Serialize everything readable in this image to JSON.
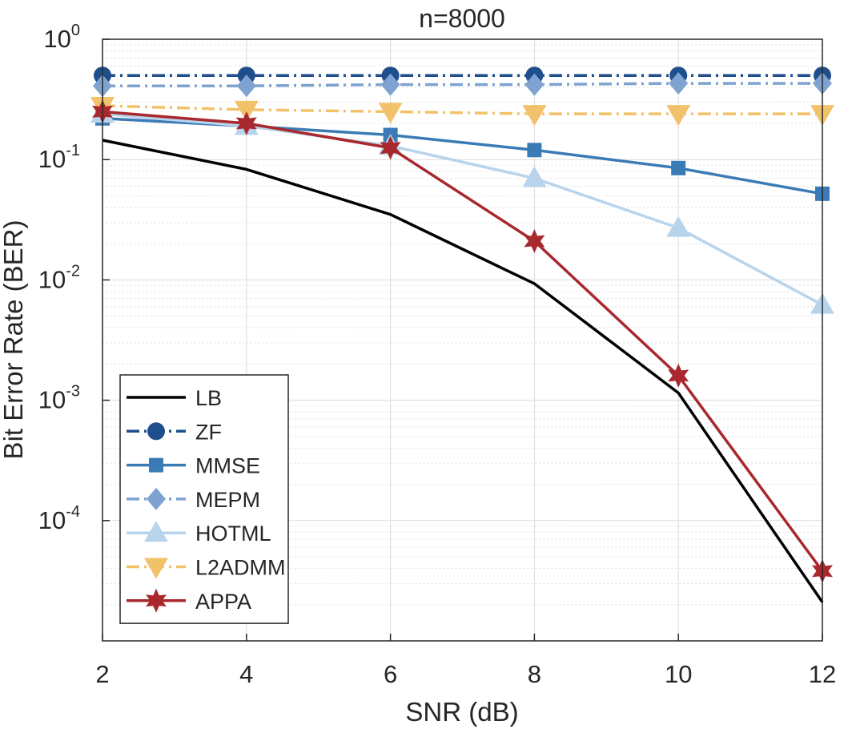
{
  "chart_data": {
    "type": "line",
    "title": "n=8000",
    "xlabel": "SNR (dB)",
    "ylabel": "Bit Error Rate (BER)",
    "y_scale": "log",
    "xlim": [
      2,
      12
    ],
    "ylim": [
      1e-05,
      1
    ],
    "x_ticks": [
      "2",
      "4",
      "6",
      "8",
      "10",
      "12"
    ],
    "y_ticks": [
      {
        "base": "10",
        "exp": "0",
        "value": 1
      },
      {
        "base": "10",
        "exp": "-1",
        "value": 0.1
      },
      {
        "base": "10",
        "exp": "-2",
        "value": 0.01
      },
      {
        "base": "10",
        "exp": "-3",
        "value": 0.001
      },
      {
        "base": "10",
        "exp": "-4",
        "value": 0.0001
      }
    ],
    "grid": true,
    "minor_grid": true,
    "legend_position": "bottom-left",
    "x": [
      2,
      4,
      6,
      8,
      10,
      12
    ],
    "series": [
      {
        "name": "LB",
        "color": "#000000",
        "dash": "solid",
        "marker": "none",
        "values": [
          0.145,
          0.083,
          0.035,
          0.0093,
          0.00115,
          2.1e-05
        ]
      },
      {
        "name": "ZF",
        "color": "#1f4e8c",
        "dash": "dashdot",
        "marker": "circle",
        "values": [
          0.5,
          0.5,
          0.5,
          0.5,
          0.5,
          0.5
        ]
      },
      {
        "name": "MMSE",
        "color": "#3a7bb5",
        "dash": "solid",
        "marker": "square",
        "values": [
          0.22,
          0.19,
          0.16,
          0.12,
          0.085,
          0.052
        ]
      },
      {
        "name": "MEPM",
        "color": "#7ea3d1",
        "dash": "dashdot",
        "marker": "diamond",
        "values": [
          0.41,
          0.41,
          0.42,
          0.42,
          0.43,
          0.43
        ]
      },
      {
        "name": "HOTML",
        "color": "#b8d4ec",
        "dash": "solid",
        "marker": "triangle-up",
        "values": [
          0.24,
          0.19,
          0.13,
          0.07,
          0.027,
          0.0062
        ]
      },
      {
        "name": "L2ADMM",
        "color": "#f2c26b",
        "dash": "dashdot",
        "marker": "triangle-down",
        "values": [
          0.28,
          0.26,
          0.25,
          0.24,
          0.24,
          0.24
        ]
      },
      {
        "name": "APPA",
        "color": "#a8282e",
        "dash": "solid",
        "marker": "hexagram",
        "values": [
          0.25,
          0.2,
          0.125,
          0.021,
          0.0016,
          3.8e-05
        ]
      }
    ]
  }
}
